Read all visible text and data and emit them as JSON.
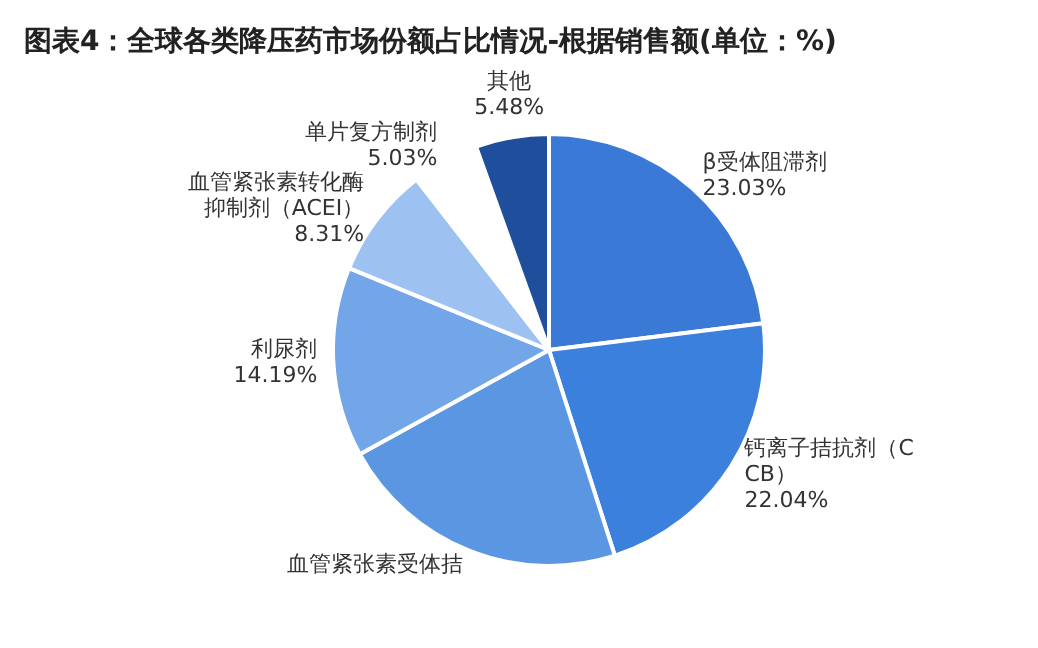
{
  "chart_data": {
    "type": "pie",
    "title": "图表4：全球各类降压药市场份额占比情况-根据销售额(单位：%)",
    "categories": [
      "β受体阻滞剂",
      "钙离子拮抗剂（CCB）",
      "血管紧张素受体拮",
      "利尿剂",
      "血管紧张素转化酶抑制剂（ACEI）",
      "单片复方制剂",
      "其他"
    ],
    "values": [
      23.03,
      22.04,
      21.92,
      14.19,
      8.31,
      5.03,
      5.48
    ],
    "value_labels": [
      "23.03%",
      "22.04%",
      null,
      "14.19%",
      "8.31%",
      "5.03%",
      "5.48%"
    ],
    "colors": [
      "#3a7ad6",
      "#3c80dd",
      "#5b96e2",
      "#72a6e8",
      "#9dc1f1",
      "#ffffff",
      "#1f4f9c"
    ],
    "legend": false
  }
}
